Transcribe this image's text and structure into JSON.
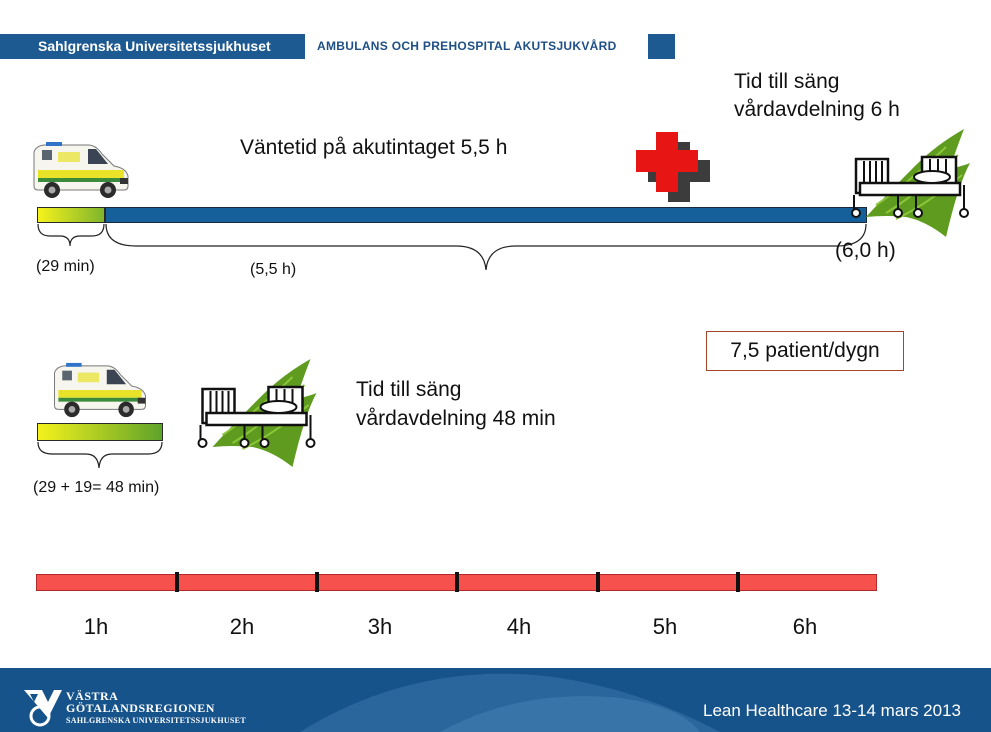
{
  "header": {
    "org": "Sahlgrenska Universitetssjukhuset",
    "dept": "AMBULANS OCH PREHOSPITAL AKUTSJUKVÅRD"
  },
  "top": {
    "wait_label": "Väntetid på akutintaget 5,5 h",
    "bed_line1": "Tid till säng",
    "bed_line2": "vårdavdelning 6 h",
    "seg1": "(29 min)",
    "seg2": "(5,5 h)",
    "total": "(6,0 h)"
  },
  "bottom": {
    "bed_line1": "Tid till säng",
    "bed_line2": "vårdavdelning 48 min",
    "seg": "(29 + 19= 48 min)",
    "rate": "7,5 patient/dygn"
  },
  "timeline": {
    "labels": [
      "1h",
      "2h",
      "3h",
      "4h",
      "5h",
      "6h"
    ]
  },
  "footer": {
    "logo_line1": "VÄSTRA",
    "logo_line2": "GÖTALANDSREGIONEN",
    "logo_line3": "SAHLGRENSKA UNIVERSITETSSJUKHUSET",
    "event": "Lean Healthcare 13-14 mars 2013"
  },
  "icons": [
    "ambulance-icon",
    "hospital-cross-icon",
    "hospital-bed-icon"
  ],
  "colors": {
    "header_blue": "#1e5a92",
    "wait_bar": "#15609a",
    "timeline_red": "#f7514e",
    "cross_red": "#e81515"
  }
}
